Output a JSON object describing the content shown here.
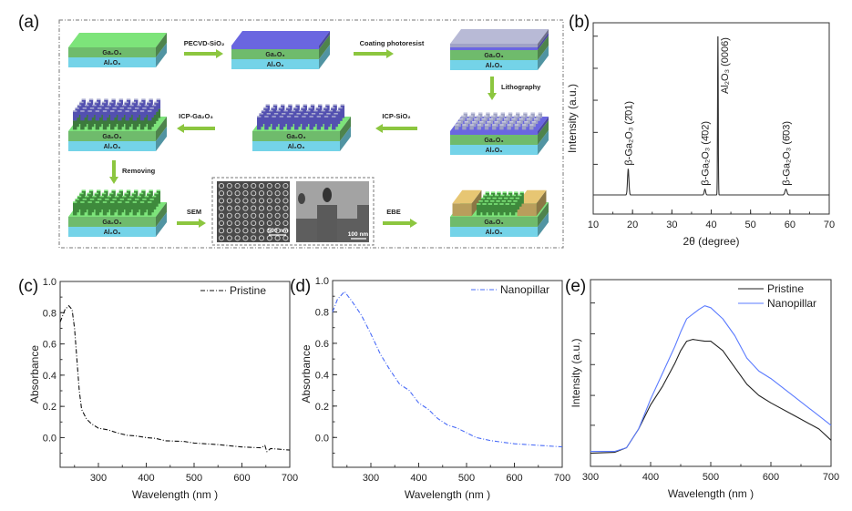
{
  "panels": {
    "a": "(a)",
    "b": "(b)",
    "c": "(c)",
    "d": "(d)",
    "e": "(e)"
  },
  "diagram": {
    "layers": {
      "ga2o3": "Ga₂O₃",
      "al2o3": "Al₂O₃"
    },
    "steps": [
      "PECVD-SiO₂",
      "Coating photoresist",
      "Lithography",
      "ICP-SiO₂",
      "ICP-Ga₂O₃",
      "Removing",
      "SEM",
      "EBE"
    ],
    "sem_scale_left": "500 nm",
    "sem_scale_right": "100 nm",
    "colors": {
      "arrow": "#8cc63f",
      "ga2o3_top": "#7de47a",
      "ga2o3": "#6fbb6c",
      "al2o3": "#74d3e8",
      "sio2": "#6a66e0",
      "photoresist": "#b8bad6",
      "contact": "#e7c673"
    }
  },
  "chart_data": [
    {
      "type": "line",
      "title": "",
      "xlabel": "2θ (degree)",
      "ylabel": "Intensity (a.u.)",
      "xlim": [
        10,
        70
      ],
      "ylim": [
        0,
        1
      ],
      "xticks": [
        "10",
        "20",
        "30",
        "40",
        "50",
        "60",
        "70"
      ],
      "xtick_values": [
        10,
        20,
        30,
        40,
        50,
        60,
        70
      ],
      "baseline": 0.1,
      "peaks": [
        {
          "position": 18.9,
          "intensity": 0.235,
          "width": 0.25,
          "label": "β-Ga₂O₃ (2̄01)"
        },
        {
          "position": 38.4,
          "intensity": 0.13,
          "width": 0.25,
          "label": "β-Ga₂O₃ (4̄02)"
        },
        {
          "position": 41.7,
          "intensity": 0.95,
          "width": 0.12,
          "label": "Al₂O₃ (0006)"
        },
        {
          "position": 59.0,
          "intensity": 0.13,
          "width": 0.35,
          "label": "β-Ga₂O₃ (6̄03)"
        }
      ],
      "color": "#333333"
    },
    {
      "type": "line",
      "xlabel": "Wavelength (nm )",
      "ylabel": "Absorbance",
      "xlim": [
        220,
        700
      ],
      "ylim": [
        -0.19,
        1.0
      ],
      "xticks": [
        "300",
        "400",
        "500",
        "600",
        "700"
      ],
      "xtick_values": [
        300,
        400,
        500,
        600,
        700
      ],
      "yticks": [
        "0.0",
        "0.2",
        "0.4",
        "0.6",
        "0.8",
        "1.0"
      ],
      "ytick_values": [
        0,
        0.2,
        0.4,
        0.6,
        0.8,
        1.0
      ],
      "legend_position": "top-right",
      "series": [
        {
          "name": "Pristine",
          "color": "#111111",
          "style": "dash-dot",
          "x": [
            220,
            230,
            238,
            245,
            250,
            255,
            260,
            265,
            275,
            285,
            300,
            320,
            340,
            360,
            380,
            400,
            420,
            440,
            480,
            500,
            550,
            600,
            640,
            648,
            652,
            660,
            700
          ],
          "y": [
            0.74,
            0.82,
            0.845,
            0.82,
            0.7,
            0.5,
            0.3,
            0.18,
            0.12,
            0.09,
            0.06,
            0.05,
            0.03,
            0.015,
            0.01,
            0.0,
            -0.005,
            -0.02,
            -0.025,
            -0.035,
            -0.045,
            -0.06,
            -0.065,
            -0.05,
            -0.09,
            -0.07,
            -0.08
          ]
        }
      ]
    },
    {
      "type": "line",
      "xlabel": "Wavelength (nm )",
      "ylabel": "Absorbance",
      "xlim": [
        220,
        700
      ],
      "ylim": [
        -0.19,
        1.0
      ],
      "xticks": [
        "300",
        "400",
        "500",
        "600",
        "700"
      ],
      "xtick_values": [
        300,
        400,
        500,
        600,
        700
      ],
      "yticks": [
        "0.0",
        "0.2",
        "0.4",
        "0.6",
        "0.8",
        "1.0"
      ],
      "ytick_values": [
        0,
        0.2,
        0.4,
        0.6,
        0.8,
        1.0
      ],
      "legend_position": "top-right",
      "series": [
        {
          "name": "Nanopillar",
          "color": "#4a6cf7",
          "style": "dash-dot",
          "x": [
            220,
            230,
            245,
            260,
            280,
            300,
            320,
            340,
            360,
            380,
            400,
            420,
            440,
            460,
            480,
            500,
            520,
            550,
            600,
            650,
            700
          ],
          "y": [
            0.8,
            0.88,
            0.93,
            0.87,
            0.78,
            0.66,
            0.53,
            0.43,
            0.34,
            0.3,
            0.22,
            0.18,
            0.12,
            0.08,
            0.06,
            0.03,
            0.0,
            -0.02,
            -0.04,
            -0.05,
            -0.06
          ]
        }
      ]
    },
    {
      "type": "line",
      "xlabel": "Wavelength (nm )",
      "ylabel": "Intensity (a.u.)",
      "xlim": [
        300,
        700
      ],
      "ylim": [
        0,
        1
      ],
      "xticks": [
        "300",
        "400",
        "500",
        "600",
        "700"
      ],
      "xtick_values": [
        300,
        400,
        500,
        600,
        700
      ],
      "legend_position": "top-right",
      "series": [
        {
          "name": "Pristine",
          "color": "#222222",
          "style": "solid",
          "x": [
            300,
            340,
            360,
            380,
            400,
            420,
            440,
            450,
            460,
            470,
            490,
            500,
            520,
            540,
            560,
            580,
            600,
            640,
            680,
            700
          ],
          "y": [
            0.07,
            0.075,
            0.1,
            0.2,
            0.33,
            0.43,
            0.55,
            0.62,
            0.67,
            0.68,
            0.67,
            0.67,
            0.62,
            0.53,
            0.44,
            0.38,
            0.34,
            0.27,
            0.2,
            0.14
          ]
        },
        {
          "name": "Nanopillar",
          "color": "#5b7bff",
          "style": "solid",
          "x": [
            300,
            340,
            360,
            380,
            400,
            420,
            440,
            450,
            460,
            480,
            490,
            500,
            520,
            540,
            560,
            580,
            600,
            640,
            680,
            700
          ],
          "y": [
            0.08,
            0.08,
            0.1,
            0.2,
            0.36,
            0.5,
            0.64,
            0.72,
            0.79,
            0.84,
            0.86,
            0.85,
            0.79,
            0.7,
            0.58,
            0.51,
            0.47,
            0.37,
            0.27,
            0.22
          ]
        }
      ]
    }
  ]
}
